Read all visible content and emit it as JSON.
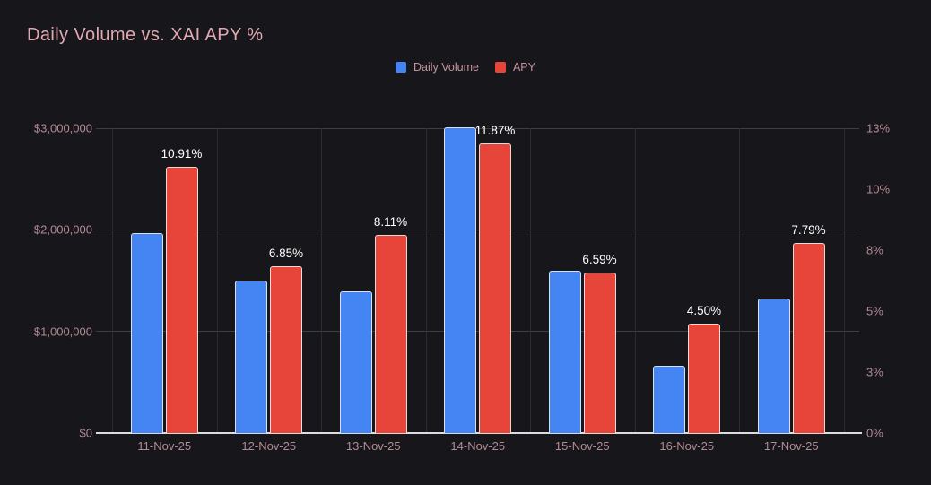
{
  "chart_data": {
    "type": "bar",
    "title": "Daily Volume vs. XAI APY %",
    "categories": [
      "11-Nov-25",
      "12-Nov-25",
      "13-Nov-25",
      "14-Nov-25",
      "15-Nov-25",
      "16-Nov-25",
      "17-Nov-25"
    ],
    "series": [
      {
        "name": "Daily Volume",
        "yaxis": "left",
        "color": "#4484f3",
        "values": [
          1970000,
          1500000,
          1390000,
          3010000,
          1600000,
          665000,
          1325000
        ]
      },
      {
        "name": "APY",
        "yaxis": "right",
        "color": "#e8453a",
        "values": [
          10.91,
          6.85,
          8.11,
          11.87,
          6.59,
          4.5,
          7.79
        ],
        "data_labels": [
          "10.91%",
          "6.85%",
          "8.11%",
          "11.87%",
          "6.59%",
          "4.50%",
          "7.79%"
        ]
      }
    ],
    "left_axis": {
      "min": 0,
      "max": 3000000,
      "tick_labels_bottom_up": [
        "$0",
        "$1,000,000",
        "$2,000,000",
        "$3,000,000"
      ]
    },
    "right_axis": {
      "min": 0,
      "max": 12.5,
      "tick_labels_bottom_up": [
        "0%",
        "3%",
        "5%",
        "8%",
        "10%",
        "13%"
      ]
    },
    "grid": true,
    "legend_position": "top",
    "background_color": "#17171b",
    "title_color": "#e2a9b3",
    "axis_label_color": "#b18a92",
    "data_label_color": "#ffffff"
  }
}
